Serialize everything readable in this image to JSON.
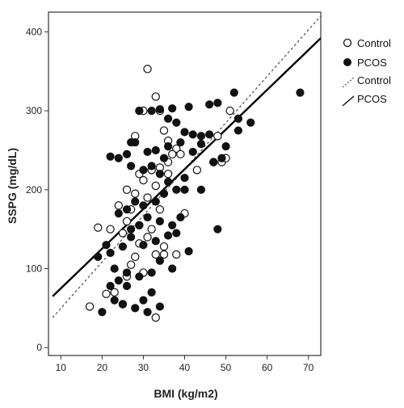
{
  "chart_data": {
    "type": "scatter",
    "xlabel": "BMI (kg/m2)",
    "ylabel": "SSPG (mg/dL)",
    "xlim": [
      7,
      73
    ],
    "ylim": [
      -10,
      425
    ],
    "xticks": [
      10,
      20,
      30,
      40,
      50,
      60,
      70
    ],
    "yticks": [
      0,
      100,
      200,
      300,
      400
    ],
    "grid": false,
    "legend_position": "right-outside-top",
    "legend": [
      {
        "label": "Control",
        "kind": "open-circle"
      },
      {
        "label": "PCOS",
        "kind": "filled-circle"
      },
      {
        "label": "Control",
        "kind": "dashed-line"
      },
      {
        "label": "PCOS",
        "kind": "solid-line"
      }
    ],
    "colors": {
      "axis": "#333333",
      "marker": "#111111",
      "control_fit": "#555555",
      "pcos_fit": "#000000"
    },
    "series": [
      {
        "name": "Control",
        "marker": "open-circle",
        "points": [
          [
            31,
            353
          ],
          [
            33,
            318
          ],
          [
            34,
            300
          ],
          [
            30,
            300
          ],
          [
            28,
            268
          ],
          [
            35,
            275
          ],
          [
            36,
            262
          ],
          [
            38,
            252
          ],
          [
            39,
            245
          ],
          [
            36,
            235
          ],
          [
            34,
            228
          ],
          [
            32,
            225
          ],
          [
            29,
            220
          ],
          [
            30,
            212
          ],
          [
            33,
            205
          ],
          [
            26,
            200
          ],
          [
            28,
            195
          ],
          [
            31,
            190
          ],
          [
            27,
            175
          ],
          [
            24,
            180
          ],
          [
            26,
            160
          ],
          [
            29,
            155
          ],
          [
            31,
            140
          ],
          [
            35,
            128
          ],
          [
            33,
            118
          ],
          [
            28,
            115
          ],
          [
            27,
            105
          ],
          [
            30,
            95
          ],
          [
            26,
            90
          ],
          [
            23,
            70
          ],
          [
            21,
            68
          ],
          [
            19,
            152
          ],
          [
            22,
            150
          ],
          [
            25,
            145
          ],
          [
            29,
            132
          ],
          [
            32,
            150
          ],
          [
            35,
            118
          ],
          [
            38,
            118
          ],
          [
            40,
            170
          ],
          [
            43,
            225
          ],
          [
            47,
            235
          ],
          [
            49,
            235
          ],
          [
            50,
            240
          ],
          [
            51,
            300
          ],
          [
            48,
            268
          ],
          [
            25,
            55
          ],
          [
            17,
            52
          ],
          [
            33,
            38
          ],
          [
            37,
            245
          ],
          [
            36,
            220
          ],
          [
            34,
            175
          ]
        ]
      },
      {
        "name": "PCOS",
        "marker": "filled-circle",
        "points": [
          [
            68,
            323
          ],
          [
            52,
            323
          ],
          [
            48,
            310
          ],
          [
            46,
            308
          ],
          [
            41,
            305
          ],
          [
            37,
            303
          ],
          [
            34,
            302
          ],
          [
            32,
            300
          ],
          [
            29,
            300
          ],
          [
            36,
            290
          ],
          [
            38,
            285
          ],
          [
            40,
            273
          ],
          [
            42,
            270
          ],
          [
            44,
            268
          ],
          [
            53,
            290
          ],
          [
            56,
            285
          ],
          [
            53,
            275
          ],
          [
            50,
            255
          ],
          [
            49,
            240
          ],
          [
            47,
            235
          ],
          [
            44,
            258
          ],
          [
            42,
            248
          ],
          [
            39,
            260
          ],
          [
            36,
            255
          ],
          [
            33,
            250
          ],
          [
            31,
            248
          ],
          [
            28,
            260
          ],
          [
            26,
            245
          ],
          [
            24,
            240
          ],
          [
            22,
            242
          ],
          [
            27,
            230
          ],
          [
            30,
            225
          ],
          [
            32,
            230
          ],
          [
            34,
            220
          ],
          [
            36,
            210
          ],
          [
            38,
            200
          ],
          [
            40,
            215
          ],
          [
            35,
            195
          ],
          [
            33,
            185
          ],
          [
            30,
            180
          ],
          [
            28,
            185
          ],
          [
            26,
            175
          ],
          [
            24,
            170
          ],
          [
            27,
            150
          ],
          [
            29,
            155
          ],
          [
            31,
            165
          ],
          [
            34,
            160
          ],
          [
            37,
            155
          ],
          [
            39,
            165
          ],
          [
            36,
            142
          ],
          [
            33,
            135
          ],
          [
            30,
            130
          ],
          [
            27,
            140
          ],
          [
            25,
            128
          ],
          [
            22,
            120
          ],
          [
            19,
            115
          ],
          [
            21,
            130
          ],
          [
            23,
            100
          ],
          [
            26,
            95
          ],
          [
            29,
            90
          ],
          [
            32,
            95
          ],
          [
            34,
            110
          ],
          [
            37,
            100
          ],
          [
            41,
            122
          ],
          [
            48,
            150
          ],
          [
            23,
            60
          ],
          [
            20,
            45
          ],
          [
            25,
            55
          ],
          [
            28,
            50
          ],
          [
            30,
            60
          ],
          [
            32,
            70
          ],
          [
            26,
            78
          ],
          [
            24,
            85
          ],
          [
            22,
            78
          ],
          [
            34,
            52
          ],
          [
            31,
            45
          ],
          [
            38,
            145
          ],
          [
            40,
            200
          ],
          [
            35,
            240
          ],
          [
            27,
            260
          ],
          [
            29,
            300
          ],
          [
            44,
            200
          ],
          [
            46,
            270
          ]
        ]
      }
    ],
    "fits": [
      {
        "name": "Control",
        "style": "dashed",
        "x": [
          8,
          73
        ],
        "y": [
          38,
          420
        ]
      },
      {
        "name": "PCOS",
        "style": "solid",
        "x": [
          8,
          73
        ],
        "y": [
          65,
          392
        ]
      }
    ]
  },
  "legend_labels": [
    "Control",
    "PCOS",
    "Control",
    "PCOS"
  ]
}
